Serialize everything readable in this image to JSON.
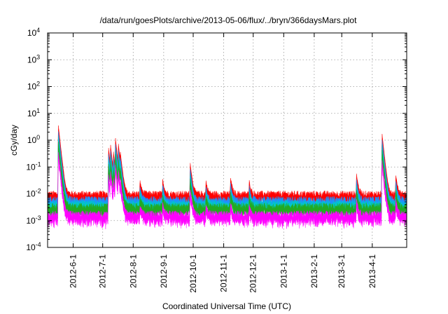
{
  "chart_data": {
    "type": "area",
    "title": "/data/run/goesPlots/archive/2013-05-06/flux/../bryn/366daysMars.plot",
    "xlabel": "Coordinated Universal Time (UTC)",
    "ylabel": "cGy/day",
    "y_scale": "log",
    "ylim": [
      0.0001,
      10000
    ],
    "xlim": [
      "2012-05-06",
      "2013-05-06"
    ],
    "grid": true,
    "y_ticks": [
      {
        "value": 0.0001,
        "base": "10",
        "exp": "-4"
      },
      {
        "value": 0.001,
        "base": "10",
        "exp": "-3"
      },
      {
        "value": 0.01,
        "base": "10",
        "exp": "-2"
      },
      {
        "value": 0.1,
        "base": "10",
        "exp": "-1"
      },
      {
        "value": 1,
        "base": "10",
        "exp": "0"
      },
      {
        "value": 10,
        "base": "10",
        "exp": "1"
      },
      {
        "value": 100,
        "base": "10",
        "exp": "2"
      },
      {
        "value": 1000,
        "base": "10",
        "exp": "3"
      },
      {
        "value": 10000,
        "base": "10",
        "exp": "4"
      }
    ],
    "x_ticks": [
      {
        "date": "2012-06-01",
        "label": "2012-6-1"
      },
      {
        "date": "2012-07-01",
        "label": "2012-7-1"
      },
      {
        "date": "2012-08-01",
        "label": "2012-8-1"
      },
      {
        "date": "2012-09-01",
        "label": "2012-9-1"
      },
      {
        "date": "2012-10-01",
        "label": "2012-10-1"
      },
      {
        "date": "2012-11-01",
        "label": "2012-11-1"
      },
      {
        "date": "2012-12-01",
        "label": "2012-12-1"
      },
      {
        "date": "2013-01-01",
        "label": "2013-1-1"
      },
      {
        "date": "2013-02-01",
        "label": "2013-2-1"
      },
      {
        "date": "2013-03-01",
        "label": "2013-3-1"
      },
      {
        "date": "2013-04-01",
        "label": "2013-4-1"
      }
    ],
    "series": [
      {
        "color": "#ff0000",
        "baseline": 0.01,
        "peak_scale": 1.0
      },
      {
        "color": "#1e90ff",
        "baseline": 0.0062,
        "peak_scale": 0.6
      },
      {
        "color": "#00c8c8",
        "baseline": 0.0045,
        "peak_scale": 0.4
      },
      {
        "color": "#22aa22",
        "baseline": 0.0035,
        "peak_scale": 0.25
      },
      {
        "color": "#ff00ff",
        "baseline": 0.0018,
        "peak_scale": 0.1
      }
    ],
    "events": [
      {
        "date": "2012-05-17",
        "peak": 3.5
      },
      {
        "date": "2012-07-07",
        "peak": 0.5
      },
      {
        "date": "2012-07-09",
        "peak": 0.55
      },
      {
        "date": "2012-07-12",
        "peak": 0.3
      },
      {
        "date": "2012-07-14",
        "peak": 1.1
      },
      {
        "date": "2012-07-17",
        "peak": 0.6
      },
      {
        "date": "2012-07-19",
        "peak": 0.2
      },
      {
        "date": "2012-08-08",
        "peak": 0.02
      },
      {
        "date": "2012-08-31",
        "peak": 0.025
      },
      {
        "date": "2012-09-28",
        "peak": 0.13
      },
      {
        "date": "2012-10-14",
        "peak": 0.02
      },
      {
        "date": "2012-11-08",
        "peak": 0.03
      },
      {
        "date": "2012-11-27",
        "peak": 0.02
      },
      {
        "date": "2013-03-16",
        "peak": 0.045
      },
      {
        "date": "2013-04-11",
        "peak": 1.7
      },
      {
        "date": "2013-04-25",
        "peak": 0.04
      }
    ]
  }
}
